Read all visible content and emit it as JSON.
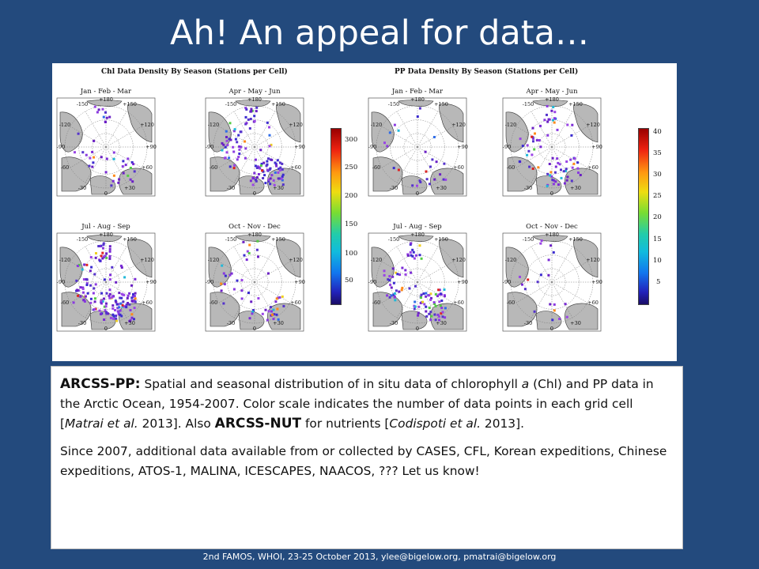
{
  "slide": {
    "title": "Ah! An appeal for data…",
    "footer": "2nd FAMOS, WHOI, 23-25 October 2013, ylee@bigelow.org, pmatrai@bigelow.org"
  },
  "figure": {
    "chl": {
      "title": "Chl Data Density By Season (Stations per Cell)",
      "seasons": [
        "Jan - Feb - Mar",
        "Apr - May - Jun",
        "Jul - Aug - Sep",
        "Oct - Nov - Dec"
      ],
      "colorbar_ticks": [
        "300",
        "250",
        "200",
        "150",
        "100",
        "50"
      ]
    },
    "pp": {
      "title": "PP Data Density By Season (Stations per Cell)",
      "seasons": [
        "Jan - Feb - Mar",
        "Apr - May - Jun",
        "Jul - Aug - Sep",
        "Oct - Nov - Dec"
      ],
      "colorbar_ticks": [
        "40",
        "35",
        "30",
        "25",
        "20",
        "15",
        "10",
        "5"
      ]
    },
    "map_lon_labels": [
      "+180",
      "-150",
      "+150",
      "-120",
      "+120",
      "-90",
      "+90",
      "-60",
      "+60",
      "-30",
      "+30",
      "0"
    ]
  },
  "textbox": {
    "p1_lead": "ARCSS-PP:",
    "p1_text_a": " Spatial and seasonal distribution of in situ data of chlorophyll ",
    "p1_a": "a",
    "p1_text_b": " (Chl) and PP data in the Arctic Ocean, 1954-2007. Color scale indicates the number of data points in each grid cell [",
    "p1_cite1": "Matrai et al.",
    "p1_text_c": " 2013].  Also ",
    "p1_lead2": "ARCSS-NUT",
    "p1_text_d": " for nutrients [",
    "p1_cite2": "Codispoti et al.",
    "p1_text_e": " 2013].",
    "p2": "Since 2007, additional data available from or collected by CASES, CFL, Korean expeditions, Chinese expeditions, ATOS-1, MALINA, ICESCAPES, NAACOS, ??? Let us know!"
  },
  "colors": {
    "background": "#234a7d",
    "land": "#b8b8b8",
    "data_purple": "#7a2ad6"
  }
}
